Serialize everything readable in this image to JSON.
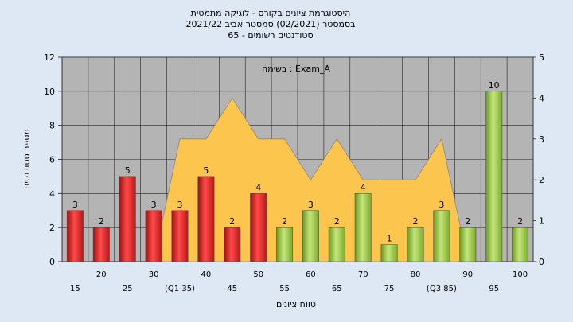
{
  "chart_data": {
    "type": "bar",
    "title_lines": [
      "היסטוגרמת ציונים בקורס - לוגיקה מתמטית",
      "בסמסטר  (02/2021)  סמסטר אביב 2021/22",
      "סטודנטים רשומים - 65"
    ],
    "annotation": "בשימה : Exam_A",
    "xlabel": "טווח ציונים",
    "ylabel": "מספר סטודנטים",
    "ylim": [
      0,
      12
    ],
    "yticks": [
      0,
      2,
      4,
      6,
      8,
      10,
      12
    ],
    "y2lim": [
      0,
      5
    ],
    "y2ticks": [
      0,
      1,
      2,
      3,
      4,
      5
    ],
    "grid": true,
    "categories": [
      "15",
      "20",
      "25",
      "30",
      "35",
      "40",
      "45",
      "50",
      "55",
      "60",
      "65",
      "70",
      "75",
      "80",
      "85",
      "90",
      "95",
      "100"
    ],
    "x_tick_labels": [
      "15",
      "20",
      "25",
      "30",
      "(Q1 35)",
      "40",
      "45",
      "50",
      "55",
      "60",
      "65",
      "70",
      "75",
      "80",
      "(Q3 85)",
      "90",
      "95",
      "100"
    ],
    "values": [
      3,
      2,
      5,
      3,
      3,
      5,
      2,
      4,
      2,
      3,
      2,
      4,
      1,
      2,
      3,
      2,
      10,
      2
    ],
    "bar_colors": [
      "#e02828",
      "#e02828",
      "#e02828",
      "#e02828",
      "#e02828",
      "#e02828",
      "#e02828",
      "#e02828",
      "#8cbf3c",
      "#8cbf3c",
      "#8cbf3c",
      "#8cbf3c",
      "#8cbf3c",
      "#8cbf3c",
      "#8cbf3c",
      "#8cbf3c",
      "#8cbf3c",
      "#8cbf3c"
    ],
    "area_series": {
      "points": [
        [
          30,
          0
        ],
        [
          35,
          3
        ],
        [
          40,
          3
        ],
        [
          45,
          4
        ],
        [
          50,
          3
        ],
        [
          55,
          3
        ],
        [
          60,
          2
        ],
        [
          65,
          3
        ],
        [
          70,
          2
        ],
        [
          75,
          2
        ],
        [
          80,
          2
        ],
        [
          85,
          3
        ],
        [
          90,
          0
        ]
      ],
      "color": "#fcc54e"
    },
    "plot_background": "#b4b4b4"
  }
}
